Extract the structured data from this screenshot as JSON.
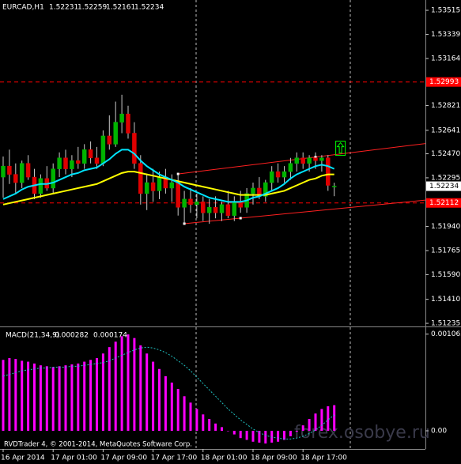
{
  "chart_data": {
    "type": "candlestick",
    "symbol": "EURCAD,H1",
    "categories": [
      "16 Apr 2014",
      null,
      null,
      null,
      null,
      null,
      null,
      null,
      "17 Apr 01:00",
      null,
      null,
      null,
      null,
      null,
      null,
      null,
      "17 Apr 09:00",
      null,
      null,
      null,
      null,
      null,
      null,
      null,
      "17 Apr 17:00",
      null,
      null,
      null,
      null,
      null,
      null,
      null,
      "18 Apr 01:00",
      null,
      null,
      null,
      null,
      null,
      null,
      null,
      "18 Apr 09:00",
      null,
      null,
      null,
      null,
      null,
      null,
      null,
      "18 Apr 17:00",
      null,
      null,
      null,
      null,
      null
    ],
    "open": [
      1.523,
      1.5238,
      1.5232,
      1.5226,
      1.524,
      1.523,
      1.5218,
      1.5229,
      1.5222,
      1.5236,
      1.5244,
      1.5236,
      1.5242,
      1.524,
      1.525,
      1.5244,
      1.524,
      1.526,
      1.5254,
      1.527,
      1.5276,
      1.5262,
      1.524,
      1.5218,
      1.5226,
      1.522,
      1.523,
      1.5222,
      1.5226,
      1.5208,
      1.5214,
      1.521,
      1.5212,
      1.5204,
      1.5208,
      1.5204,
      1.521,
      1.5202,
      1.5212,
      1.5208,
      1.5218,
      1.5222,
      1.5216,
      1.5226,
      1.5234,
      1.523,
      1.5234,
      1.524,
      1.5244,
      1.524,
      1.5244,
      1.5242,
      1.5244,
      1.52231
    ],
    "high": [
      1.5245,
      1.525,
      1.524,
      1.5242,
      1.5246,
      1.5236,
      1.5232,
      1.5238,
      1.524,
      1.5248,
      1.525,
      1.5246,
      1.5252,
      1.5254,
      1.5256,
      1.5252,
      1.5264,
      1.5275,
      1.5285,
      1.529,
      1.5282,
      1.527,
      1.5246,
      1.5232,
      1.5236,
      1.5234,
      1.5236,
      1.5232,
      1.5232,
      1.522,
      1.5222,
      1.5218,
      1.5216,
      1.5214,
      1.5216,
      1.5212,
      1.522,
      1.5216,
      1.522,
      1.5222,
      1.5226,
      1.523,
      1.5228,
      1.5238,
      1.524,
      1.5238,
      1.5244,
      1.5248,
      1.5248,
      1.5246,
      1.5248,
      1.5246,
      1.5246,
      1.52259
    ],
    "low": [
      1.5215,
      1.5225,
      1.5218,
      1.5222,
      1.5228,
      1.5214,
      1.5215,
      1.522,
      1.5218,
      1.523,
      1.5232,
      1.523,
      1.5236,
      1.5236,
      1.524,
      1.5236,
      1.5238,
      1.525,
      1.5252,
      1.5262,
      1.5258,
      1.5236,
      1.521,
      1.5206,
      1.5212,
      1.5214,
      1.5218,
      1.5212,
      1.5202,
      1.5196,
      1.5204,
      1.52,
      1.5198,
      1.5196,
      1.52,
      1.5198,
      1.52,
      1.5198,
      1.5204,
      1.5204,
      1.521,
      1.5214,
      1.5212,
      1.522,
      1.5226,
      1.5226,
      1.5228,
      1.5234,
      1.5236,
      1.5234,
      1.5236,
      1.5234,
      1.522,
      1.52161
    ],
    "close": [
      1.5238,
      1.5232,
      1.5226,
      1.524,
      1.523,
      1.5218,
      1.5229,
      1.5222,
      1.5236,
      1.5244,
      1.5236,
      1.5242,
      1.524,
      1.525,
      1.5244,
      1.524,
      1.526,
      1.5254,
      1.527,
      1.5276,
      1.5262,
      1.524,
      1.5218,
      1.5226,
      1.522,
      1.523,
      1.5222,
      1.5226,
      1.5208,
      1.5214,
      1.521,
      1.5212,
      1.5204,
      1.5208,
      1.5204,
      1.521,
      1.5202,
      1.5212,
      1.5208,
      1.5218,
      1.5222,
      1.5216,
      1.5226,
      1.5234,
      1.523,
      1.5234,
      1.524,
      1.5244,
      1.524,
      1.5244,
      1.5242,
      1.5244,
      1.5224,
      1.52234
    ],
    "up_color": "#00b400",
    "down_color": "#e00000",
    "wick_color": "#c8c8c8",
    "series": [
      {
        "color": "#ffff00",
        "values": [
          1.521,
          1.5211,
          1.5212,
          1.5213,
          1.5214,
          1.5215,
          1.5216,
          1.5217,
          1.5218,
          1.5219,
          1.522,
          1.5221,
          1.5222,
          1.5223,
          1.5224,
          1.5225,
          1.5227,
          1.5229,
          1.5231,
          1.5233,
          1.5234,
          1.5234,
          1.5233,
          1.5232,
          1.5231,
          1.523,
          1.5229,
          1.5228,
          1.5227,
          1.5226,
          1.5225,
          1.5224,
          1.5223,
          1.5222,
          1.5221,
          1.522,
          1.5219,
          1.5218,
          1.5217,
          1.5217,
          1.5217,
          1.5217,
          1.5217,
          1.5218,
          1.5219,
          1.522,
          1.5222,
          1.5224,
          1.5226,
          1.5228,
          1.5229,
          1.5231,
          1.5232,
          1.5232
        ]
      },
      {
        "color": "#00e5ff",
        "values": [
          1.5214,
          1.5216,
          1.5218,
          1.5221,
          1.5223,
          1.5224,
          1.5225,
          1.5225,
          1.5226,
          1.5228,
          1.523,
          1.5232,
          1.5233,
          1.5235,
          1.5236,
          1.5237,
          1.524,
          1.5243,
          1.5247,
          1.525,
          1.525,
          1.5247,
          1.5242,
          1.5238,
          1.5235,
          1.5232,
          1.523,
          1.5228,
          1.5226,
          1.5223,
          1.5221,
          1.5219,
          1.5217,
          1.5215,
          1.5214,
          1.5213,
          1.5212,
          1.5212,
          1.5212,
          1.5213,
          1.5215,
          1.5216,
          1.5218,
          1.522,
          1.5222,
          1.5225,
          1.5229,
          1.5232,
          1.5234,
          1.5236,
          1.5238,
          1.5239,
          1.5238,
          1.5236
        ]
      }
    ],
    "trendlines": [
      {
        "color": "#ff2020",
        "x": [
          28,
          50
        ],
        "values": [
          1.52323,
          1.52446
        ]
      },
      {
        "color": "#ff2020",
        "x": [
          29,
          38
        ],
        "values": [
          1.51961,
          1.52001
        ]
      }
    ],
    "signal_arrow": {
      "color": "#00ff00",
      "x": 54,
      "value": 1.5251
    },
    "levels": [
      {
        "color": "#ff0000",
        "value": 1.52993
      },
      {
        "color": "#ff0000",
        "value": 1.52112
      }
    ],
    "ylim": [
      1.51218,
      1.5359
    ],
    "yticks": [
      1.53515,
      1.53339,
      1.53164,
      1.52821,
      1.52641,
      {
        "value": 1.5247,
        "label": "1.52470"
      },
      1.52295,
      {
        "value": 1.5194,
        "label": "1.51940"
      },
      1.51765,
      {
        "value": 1.5159,
        "label": "1.51590"
      },
      {
        "value": 1.5141,
        "label": "1.51410"
      },
      1.51235
    ],
    "macd": {
      "title": "MACD(21,34,9)",
      "color": "#ff00ff",
      "signal_color": "#20c0c0",
      "values": [
        0.00078,
        0.0008,
        0.00079,
        0.00077,
        0.00076,
        0.00074,
        0.00072,
        0.00071,
        0.0007,
        0.00071,
        0.00072,
        0.00073,
        0.00074,
        0.00076,
        0.00078,
        0.0008,
        0.00085,
        0.00092,
        0.00098,
        0.00104,
        0.00106,
        0.00102,
        0.00094,
        0.00085,
        0.00076,
        0.00068,
        0.0006,
        0.00053,
        0.00046,
        0.00038,
        0.00031,
        0.00024,
        0.00018,
        0.00013,
        8e-05,
        4e-05,
        0.0,
        -4e-05,
        -8e-05,
        -0.0001,
        -0.00012,
        -0.00013,
        -0.00014,
        -0.00013,
        -0.00012,
        -0.0001,
        -6e-05,
        -1e-05,
        6e-05,
        0.00013,
        0.00019,
        0.00024,
        0.00027,
        0.000282
      ],
      "signal": [
        0.0006,
        0.00062,
        0.00064,
        0.00066,
        0.00067,
        0.00068,
        0.00069,
        0.00069,
        0.0007,
        0.0007,
        0.0007,
        0.00071,
        0.00071,
        0.00072,
        0.00073,
        0.00074,
        0.00075,
        0.00077,
        0.0008,
        0.00083,
        0.00086,
        0.00089,
        0.00091,
        0.00092,
        0.00091,
        0.00089,
        0.00086,
        0.00082,
        0.00077,
        0.00072,
        0.00066,
        0.00059,
        0.00052,
        0.00045,
        0.00038,
        0.00031,
        0.00024,
        0.00018,
        0.00012,
        7e-05,
        2e-05,
        -2e-05,
        -5e-05,
        -7e-05,
        -8e-05,
        -9e-05,
        -9e-05,
        -8e-05,
        -6e-05,
        -3e-05,
        1e-05,
        6e-05,
        0.00012,
        0.000174
      ],
      "ylim": [
        -0.0002,
        0.00113
      ],
      "yticks": [
        0.001063,
        {
          "value": 0,
          "label": "0.00"
        }
      ]
    },
    "copyright": "RVDTrader 4, © 2001-2014, MetaQuotes Software Corp.",
    "watermark": "forex.osobye.ru"
  }
}
